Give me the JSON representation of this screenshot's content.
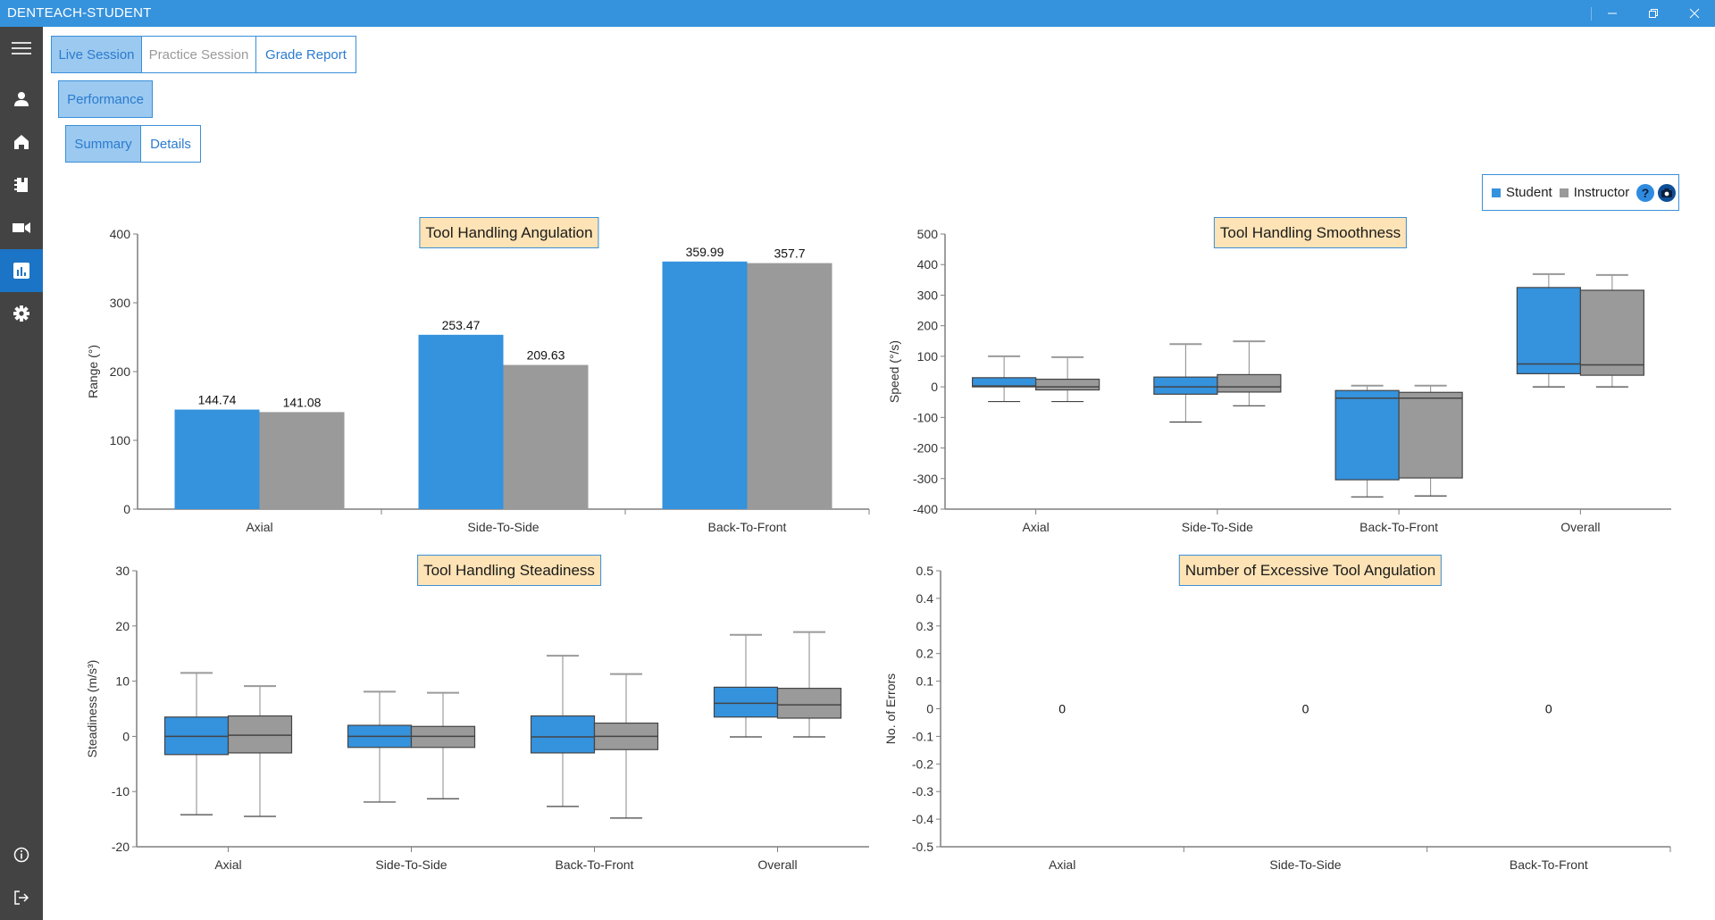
{
  "app": {
    "title": "DENTEACH-STUDENT",
    "window_controls": [
      "minimize-icon",
      "restore-icon",
      "close-icon"
    ]
  },
  "sidebar": {
    "items": [
      {
        "name": "menu",
        "icon": "hamburger-menu-icon",
        "active": false
      },
      {
        "name": "profile",
        "icon": "user-icon",
        "active": false
      },
      {
        "name": "home",
        "icon": "home-icon",
        "active": false
      },
      {
        "name": "notebook",
        "icon": "notebook-icon",
        "active": false
      },
      {
        "name": "video",
        "icon": "video-camera-icon",
        "active": false
      },
      {
        "name": "reports",
        "icon": "bar-chart-icon",
        "active": true
      },
      {
        "name": "settings",
        "icon": "gear-icon",
        "active": false
      },
      {
        "name": "info",
        "icon": "info-icon",
        "active": false
      },
      {
        "name": "logout",
        "icon": "logout-icon",
        "active": false
      }
    ]
  },
  "tabs": {
    "session": [
      {
        "label": "Live Session",
        "state": "active"
      },
      {
        "label": "Practice Session",
        "state": "disabled"
      },
      {
        "label": "Grade Report",
        "state": "normal"
      }
    ],
    "category": [
      {
        "label": "Performance",
        "state": "active"
      }
    ],
    "view": [
      {
        "label": "Summary",
        "state": "active"
      },
      {
        "label": "Details",
        "state": "normal"
      }
    ]
  },
  "legend": {
    "items": [
      {
        "label": "Student",
        "color": "#3592dd"
      },
      {
        "label": "Instructor",
        "color": "#9a9a9a"
      }
    ],
    "help_icon": "question-icon",
    "snapshot_icon": "camera-icon"
  },
  "colors": {
    "student": "#3592dd",
    "instructor": "#9a9a9a",
    "accent": "#3a8fd8",
    "title_bg": "#fde3b5"
  },
  "chart_data": [
    {
      "id": "angulation",
      "type": "bar",
      "title": "Tool Handling Angulation",
      "xlabel": "",
      "ylabel": "Range (°)",
      "ylim": [
        0,
        400
      ],
      "yticks": [
        0,
        100,
        200,
        300,
        400
      ],
      "categories": [
        "Axial",
        "Side-To-Side",
        "Back-To-Front"
      ],
      "series": [
        {
          "name": "Student",
          "values": [
            144.74,
            253.47,
            359.99
          ],
          "labels": [
            "144.74",
            "253.47",
            "359.99"
          ]
        },
        {
          "name": "Instructor",
          "values": [
            141.08,
            209.63,
            357.7
          ],
          "labels": [
            "141.08",
            "209.63",
            "357.7"
          ]
        }
      ],
      "grid": false,
      "legend": "top-right"
    },
    {
      "id": "smoothness",
      "type": "box",
      "title": "Tool Handling Smoothness",
      "xlabel": "",
      "ylabel": "Speed (°/s)",
      "ylim": [
        -400,
        500
      ],
      "yticks": [
        -400,
        -300,
        -200,
        -100,
        0,
        100,
        200,
        300,
        400,
        500
      ],
      "categories": [
        "Axial",
        "Side-To-Side",
        "Back-To-Front",
        "Overall"
      ],
      "series": [
        {
          "name": "Student",
          "boxes": [
            {
              "min": -48,
              "q1": 0,
              "median": 3,
              "q3": 30,
              "max": 100
            },
            {
              "min": -115,
              "q1": -24,
              "median": 0,
              "q3": 32,
              "max": 140
            },
            {
              "min": -360,
              "q1": -304,
              "median": -37,
              "q3": -12,
              "max": 4
            },
            {
              "min": 0,
              "q1": 43,
              "median": 75,
              "q3": 325,
              "max": 369
            }
          ]
        },
        {
          "name": "Instructor",
          "boxes": [
            {
              "min": -48,
              "q1": -10,
              "median": 0,
              "q3": 25,
              "max": 97
            },
            {
              "min": -62,
              "q1": -17,
              "median": 0,
              "q3": 40,
              "max": 149
            },
            {
              "min": -357,
              "q1": -298,
              "median": -37,
              "q3": -18,
              "max": 4
            },
            {
              "min": 0,
              "q1": 38,
              "median": 72,
              "q3": 316,
              "max": 366
            }
          ]
        }
      ],
      "grid": false
    },
    {
      "id": "steadiness",
      "type": "box",
      "title": "Tool Handling Steadiness",
      "xlabel": "",
      "ylabel": "Steadiness (m/s³)",
      "ylim": [
        -20,
        30
      ],
      "yticks": [
        -20,
        -10,
        0,
        10,
        20,
        30
      ],
      "categories": [
        "Axial",
        "Side-To-Side",
        "Back-To-Front",
        "Overall"
      ],
      "series": [
        {
          "name": "Student",
          "boxes": [
            {
              "min": -14.2,
              "q1": -3.3,
              "median": 0,
              "q3": 3.5,
              "max": 11.5
            },
            {
              "min": -11.9,
              "q1": -2.0,
              "median": 0,
              "q3": 2.0,
              "max": 8.1
            },
            {
              "min": -12.7,
              "q1": -3.0,
              "median": -0.1,
              "q3": 3.7,
              "max": 14.6
            },
            {
              "min": -0.1,
              "q1": 3.5,
              "median": 6.0,
              "q3": 8.9,
              "max": 18.4
            }
          ]
        },
        {
          "name": "Instructor",
          "boxes": [
            {
              "min": -14.5,
              "q1": -3.0,
              "median": 0.2,
              "q3": 3.7,
              "max": 9.1
            },
            {
              "min": -11.3,
              "q1": -2.0,
              "median": 0,
              "q3": 1.8,
              "max": 7.9
            },
            {
              "min": -14.8,
              "q1": -2.4,
              "median": 0,
              "q3": 2.4,
              "max": 11.3
            },
            {
              "min": -0.1,
              "q1": 3.3,
              "median": 5.7,
              "q3": 8.7,
              "max": 18.9
            }
          ]
        }
      ],
      "grid": false
    },
    {
      "id": "errors",
      "type": "bar",
      "title": "Number of Excessive Tool Angulation",
      "xlabel": "",
      "ylabel": "No. of Errors",
      "ylim": [
        -0.5,
        0.5
      ],
      "yticks": [
        -0.5,
        -0.4,
        -0.3,
        -0.2,
        -0.1,
        0,
        0.1,
        0.2,
        0.3,
        0.4,
        0.5
      ],
      "categories": [
        "Axial",
        "Side-To-Side",
        "Back-To-Front"
      ],
      "series": [
        {
          "name": "Student",
          "values": [
            0,
            0,
            0
          ],
          "labels": [
            "0",
            "0",
            "0"
          ]
        }
      ],
      "grid": false
    }
  ]
}
